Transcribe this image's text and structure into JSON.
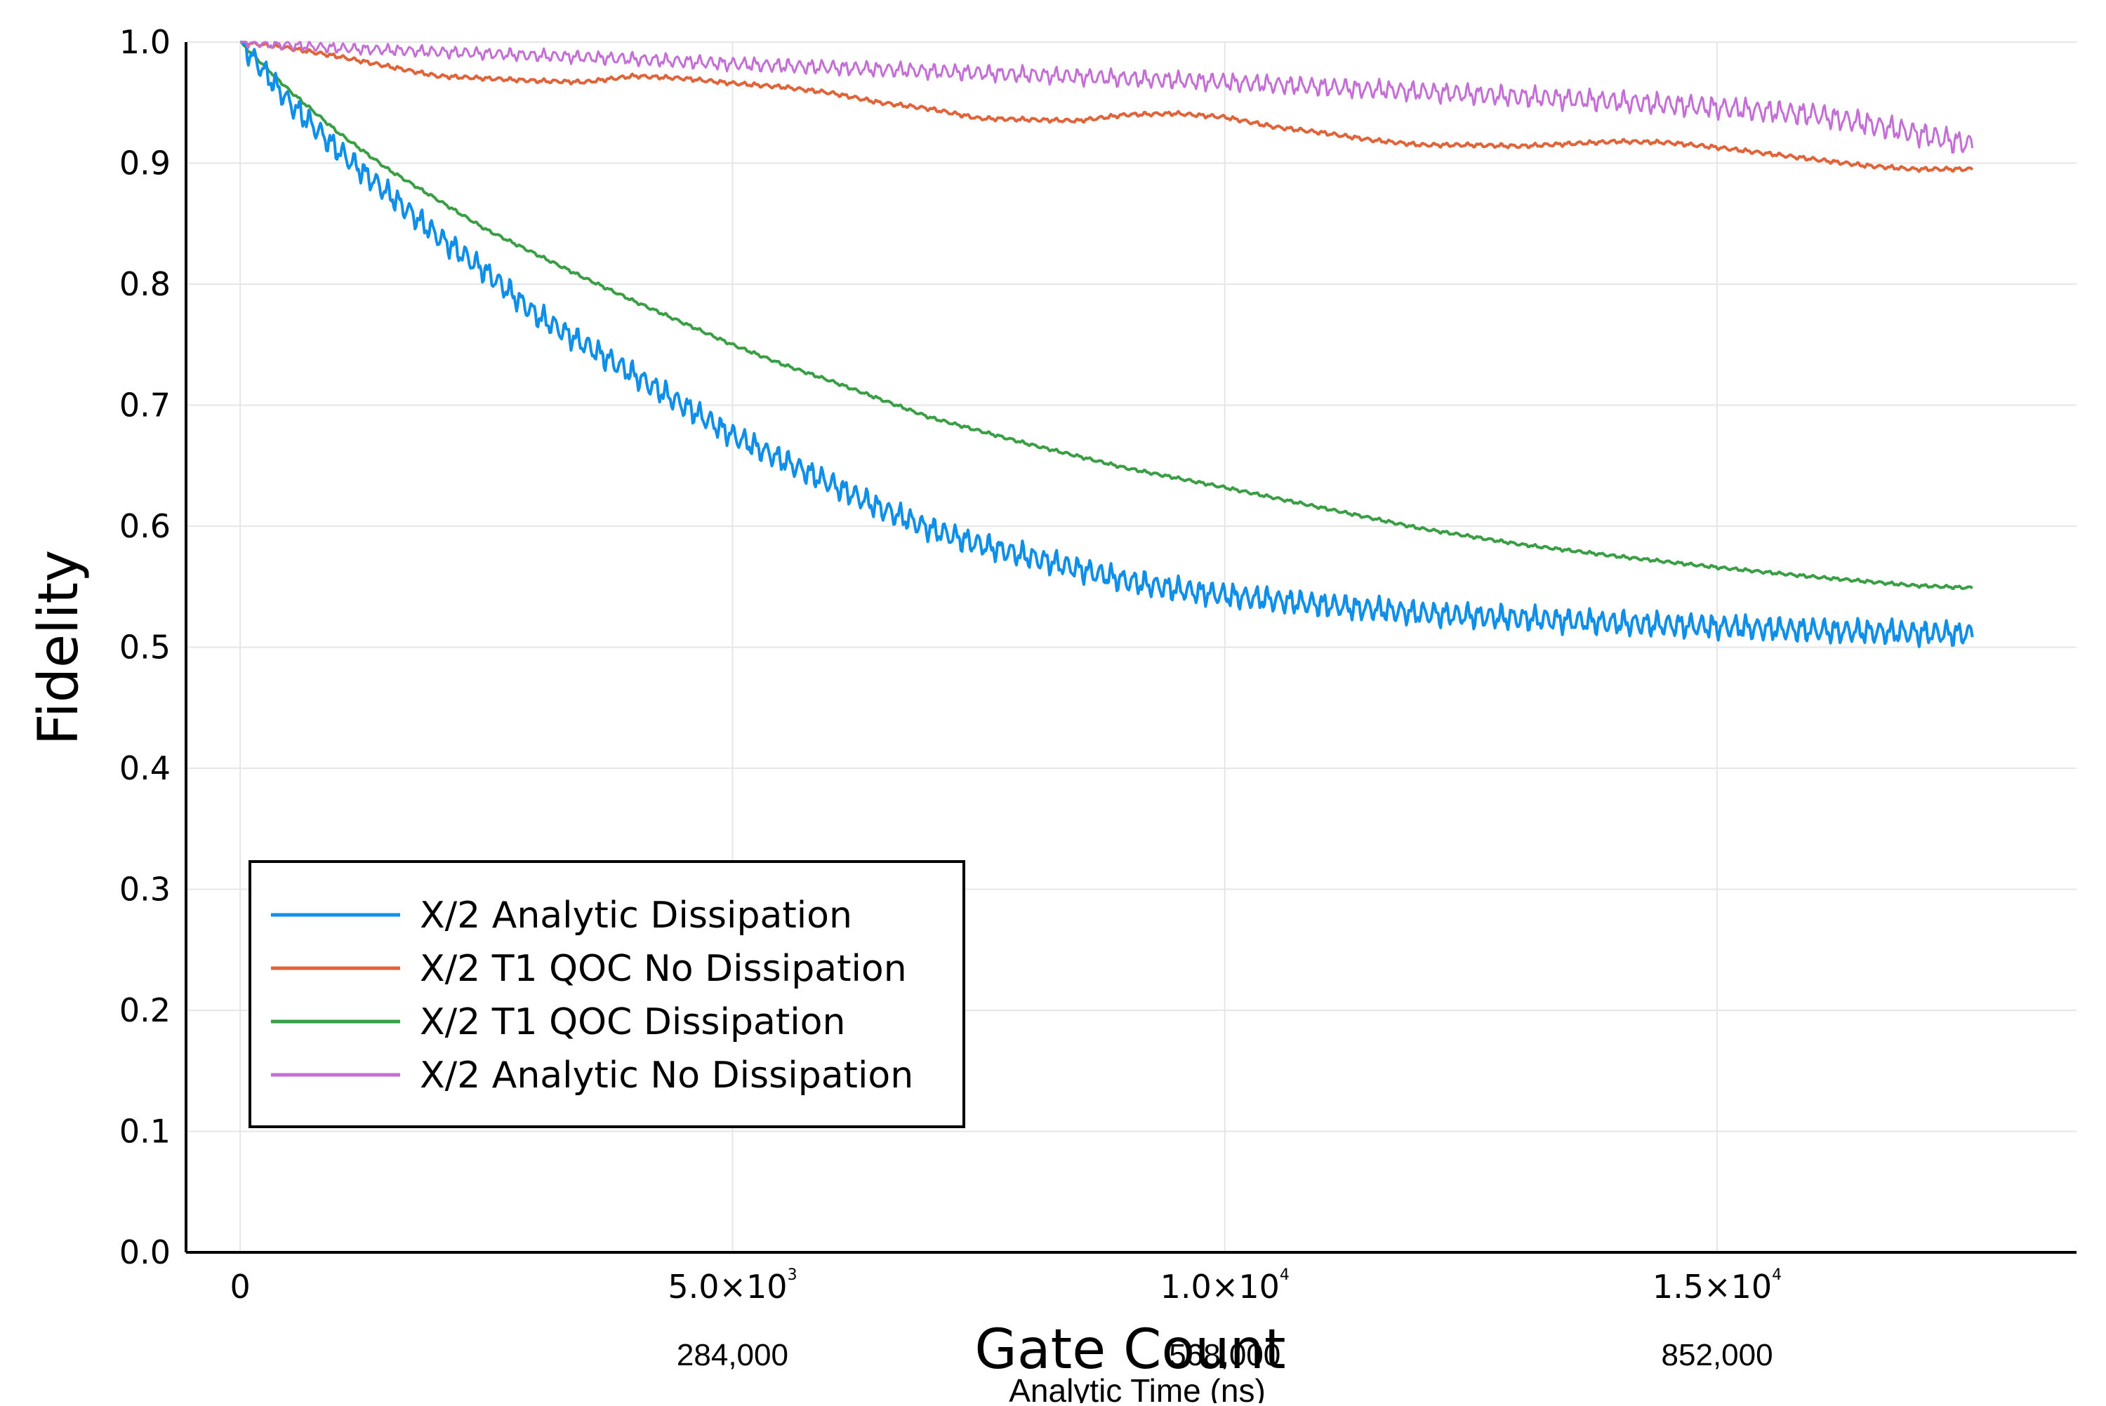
{
  "chart_data": {
    "type": "line",
    "xlabel": "Gate Count",
    "x2label": "Analytic Time (ns)",
    "ylabel": "Fidelity",
    "xlim": [
      -550,
      18650
    ],
    "ylim": [
      0.0,
      1.0
    ],
    "grid": true,
    "legend_position": "bottom-left",
    "x_ticks": [
      {
        "value": 0,
        "mantissa": "0",
        "exponent": ""
      },
      {
        "value": 5000,
        "mantissa": "5.0×10",
        "exponent": "3"
      },
      {
        "value": 10000,
        "mantissa": "1.0×10",
        "exponent": "4"
      },
      {
        "value": 15000,
        "mantissa": "1.5×10",
        "exponent": "4"
      }
    ],
    "x2_ticks": [
      {
        "value": 5000,
        "label": "284,000"
      },
      {
        "value": 10000,
        "label": "568,000"
      },
      {
        "value": 15000,
        "label": "852,000"
      }
    ],
    "y_ticks": [
      "0.0",
      "0.1",
      "0.2",
      "0.3",
      "0.4",
      "0.5",
      "0.6",
      "0.7",
      "0.8",
      "0.9",
      "1.0"
    ],
    "series": [
      {
        "name": "X/2 Analytic Dissipation",
        "color": "#0f8fe8",
        "x": [
          0,
          500,
          1000,
          1500,
          2000,
          2500,
          3000,
          3500,
          4000,
          4500,
          5000,
          5500,
          6000,
          6500,
          7000,
          7500,
          8000,
          8500,
          9000,
          9500,
          10000,
          11000,
          12000,
          13000,
          14000,
          15000,
          16000,
          17000,
          17600
        ],
        "y": [
          1.0,
          0.95,
          0.91,
          0.875,
          0.84,
          0.81,
          0.775,
          0.75,
          0.725,
          0.7,
          0.675,
          0.655,
          0.635,
          0.615,
          0.598,
          0.585,
          0.575,
          0.565,
          0.555,
          0.548,
          0.543,
          0.535,
          0.528,
          0.524,
          0.52,
          0.517,
          0.514,
          0.512,
          0.511
        ],
        "oscillation": 0.012
      },
      {
        "name": "X/2 T1 QOC No Dissipation",
        "color": "#e0643a",
        "x": [
          0,
          500,
          1000,
          1500,
          2000,
          2500,
          3000,
          3500,
          4000,
          4500,
          5000,
          5500,
          6000,
          6500,
          7000,
          7500,
          8000,
          8500,
          9000,
          9500,
          10000,
          10500,
          11000,
          11500,
          12000,
          12500,
          13000,
          13500,
          14000,
          14500,
          15000,
          15500,
          16000,
          16500,
          17000,
          17600
        ],
        "y": [
          1.0,
          0.995,
          0.988,
          0.98,
          0.972,
          0.97,
          0.968,
          0.967,
          0.972,
          0.97,
          0.966,
          0.963,
          0.958,
          0.95,
          0.945,
          0.937,
          0.936,
          0.935,
          0.94,
          0.941,
          0.938,
          0.93,
          0.925,
          0.919,
          0.915,
          0.915,
          0.914,
          0.916,
          0.918,
          0.917,
          0.913,
          0.908,
          0.903,
          0.898,
          0.895,
          0.895
        ],
        "oscillation": 0.002
      },
      {
        "name": "X/2 T1 QOC Dissipation",
        "color": "#3a9e45",
        "x": [
          0,
          500,
          1000,
          1500,
          2000,
          2500,
          3000,
          3500,
          4000,
          4500,
          5000,
          5500,
          6000,
          6500,
          7000,
          8000,
          9000,
          10000,
          11000,
          12000,
          13000,
          14000,
          15000,
          16000,
          17000,
          17600
        ],
        "y": [
          1.0,
          0.96,
          0.925,
          0.895,
          0.87,
          0.845,
          0.825,
          0.805,
          0.786,
          0.768,
          0.75,
          0.734,
          0.72,
          0.705,
          0.69,
          0.668,
          0.648,
          0.632,
          0.615,
          0.598,
          0.585,
          0.575,
          0.566,
          0.558,
          0.551,
          0.549
        ],
        "oscillation": 0.0015
      },
      {
        "name": "X/2 Analytic No Dissipation",
        "color": "#c46fd6",
        "x": [
          0,
          1000,
          2000,
          3000,
          4000,
          5000,
          6000,
          7000,
          8000,
          9000,
          10000,
          11000,
          12000,
          13000,
          14000,
          15000,
          16000,
          16500,
          17000,
          17600
        ],
        "y": [
          1.0,
          0.995,
          0.992,
          0.989,
          0.986,
          0.982,
          0.979,
          0.976,
          0.973,
          0.97,
          0.967,
          0.963,
          0.959,
          0.955,
          0.951,
          0.946,
          0.94,
          0.933,
          0.925,
          0.915
        ],
        "oscillation": 0.012
      }
    ]
  }
}
